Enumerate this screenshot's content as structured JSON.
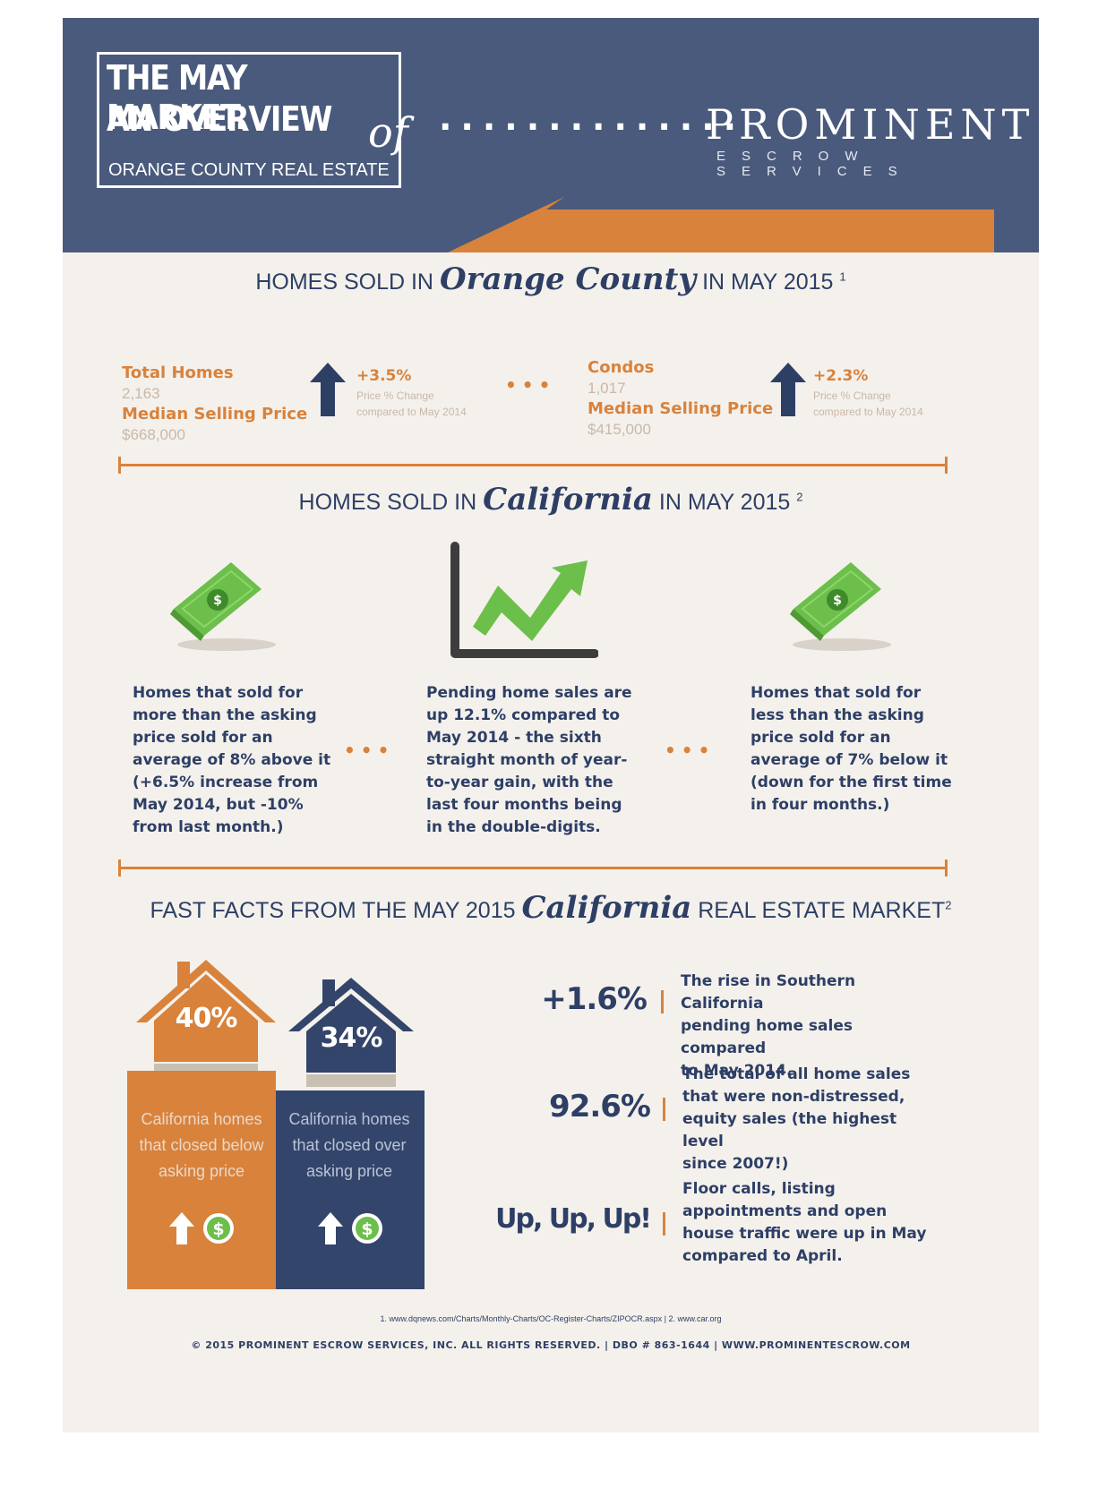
{
  "header": {
    "title_line1": "THE MAY MARKET.",
    "title_line2": "AN OVERVIEW",
    "title_of": "of",
    "subtitle": "ORANGE COUNTY REAL ESTATE",
    "dots": "..............",
    "logo_name": "PROMINENT",
    "logo_sub": "ESCROW SERVICES"
  },
  "orange_county": {
    "title_prefix": "HOMES SOLD IN",
    "title_script": "Orange County",
    "title_suffix": "IN MAY 2015",
    "footnote_mark": "1",
    "total_homes": {
      "label": "Total Homes",
      "value": "2,163",
      "price_label": "Median Selling Price",
      "price_value": "$668,000",
      "change": "+3.5%",
      "change_note1": "Price % Change",
      "change_note2": "compared to May 2014"
    },
    "separator_dots": "•••",
    "condos": {
      "label": "Condos",
      "value": "1,017",
      "price_label": "Median Selling Price",
      "price_value": "$415,000",
      "change": "+2.3%",
      "change_note1": "Price % Change",
      "change_note2": "compared to May 2014"
    }
  },
  "california": {
    "title_prefix": "HOMES SOLD IN",
    "title_script": "California",
    "title_suffix": "IN MAY 2015",
    "footnote_mark": "2",
    "col1": [
      "Homes that sold for",
      "more than the asking",
      "price sold for an",
      "average of 8% above it",
      "(+6.5% increase from",
      "May 2014, but -10%",
      "from last month.)"
    ],
    "col2": [
      "Pending home sales  are",
      "up 12.1% compared to",
      "May 2014 - the sixth",
      "straight month of year-",
      "to-year gain, with the",
      "last four months being",
      "in the double-digits."
    ],
    "col3": [
      "Homes that sold for",
      "less than the asking",
      "price sold for an",
      "average of 7% below it",
      "(down for the first time",
      "in four months.)"
    ],
    "dots": "•••"
  },
  "fast_facts": {
    "title_prefix": "FAST FACTS  FROM THE MAY 2015",
    "title_script": "California",
    "title_suffix": "REAL ESTATE MARKET",
    "footnote_mark": "2",
    "house_orange": {
      "pct": "40%",
      "caption": [
        "California homes",
        "that closed below",
        "asking price"
      ],
      "color": "#d9823b"
    },
    "house_blue": {
      "pct": "34%",
      "caption": [
        "California homes",
        "that closed over",
        "asking price"
      ],
      "color": "#34456b"
    },
    "facts": [
      {
        "num": "+1.6%",
        "text": [
          "The rise in Southern California",
          "pending home sales compared",
          "to May 2014."
        ]
      },
      {
        "num": "92.6%",
        "text": [
          "The total of all home sales",
          "that were non-distressed,",
          "equity sales (the highest level",
          "since 2007!)"
        ]
      },
      {
        "num": "Up, Up, Up!",
        "text": [
          "Floor calls, listing",
          "appointments and open",
          "house traffic were up in May",
          "compared to April."
        ]
      }
    ]
  },
  "footer": {
    "sources": "1. www.dqnews.com/Charts/Monthly-Charts/OC-Register-Charts/ZIPOCR.aspx  |  2. www.car.org",
    "copyright": "© 2015 PROMINENT ESCROW SERVICES, INC. ALL RIGHTS RESERVED. | DBO # 863-1644 | WWW.PROMINENTESCROW.COM"
  },
  "colors": {
    "navy": "#4a5a7c",
    "orange": "#d9823b",
    "background": "#f4f1ec",
    "green": "#6cbf4a"
  }
}
